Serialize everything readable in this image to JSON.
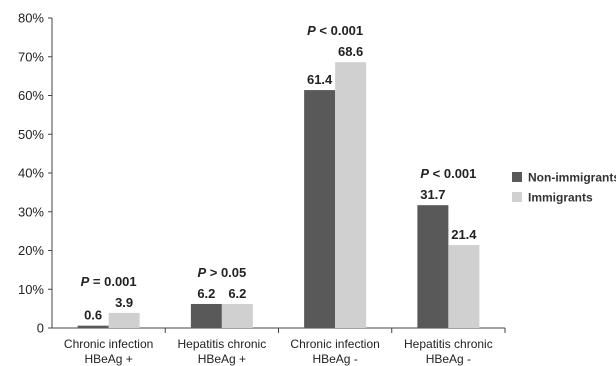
{
  "chart_data": {
    "type": "bar",
    "categories": [
      [
        "Chronic infection",
        "HBeAg +"
      ],
      [
        "Hepatitis chronic",
        "HBeAg +"
      ],
      [
        "Chronic infection",
        "HBeAg -"
      ],
      [
        "Hepatitis chronic",
        "HBeAg -"
      ]
    ],
    "series": [
      {
        "name": "Non-immigrants",
        "color": "#595959",
        "values": [
          0.6,
          6.2,
          61.4,
          31.7
        ],
        "labels": [
          "0.6",
          "6.2",
          "61.4",
          "31.7"
        ]
      },
      {
        "name": "Immigrants",
        "color": "#d0d0d0",
        "values": [
          3.9,
          6.2,
          68.6,
          21.4
        ],
        "labels": [
          "3.9",
          "6.2",
          "68.6",
          "21.4"
        ]
      }
    ],
    "p_values": [
      {
        "prefix": "P",
        "rest": " = 0.001"
      },
      {
        "prefix": "P",
        "rest": " > 0.05"
      },
      {
        "prefix": "P",
        "rest": " < 0.001"
      },
      {
        "prefix": "P",
        "rest": " < 0.001"
      }
    ],
    "yticks": [
      "0",
      "10%",
      "20%",
      "30%",
      "40%",
      "50%",
      "60%",
      "70%",
      "80%"
    ],
    "ylim": [
      0,
      80
    ],
    "grid": false,
    "legend_position": "right",
    "title": "",
    "xlabel": "",
    "ylabel": ""
  }
}
